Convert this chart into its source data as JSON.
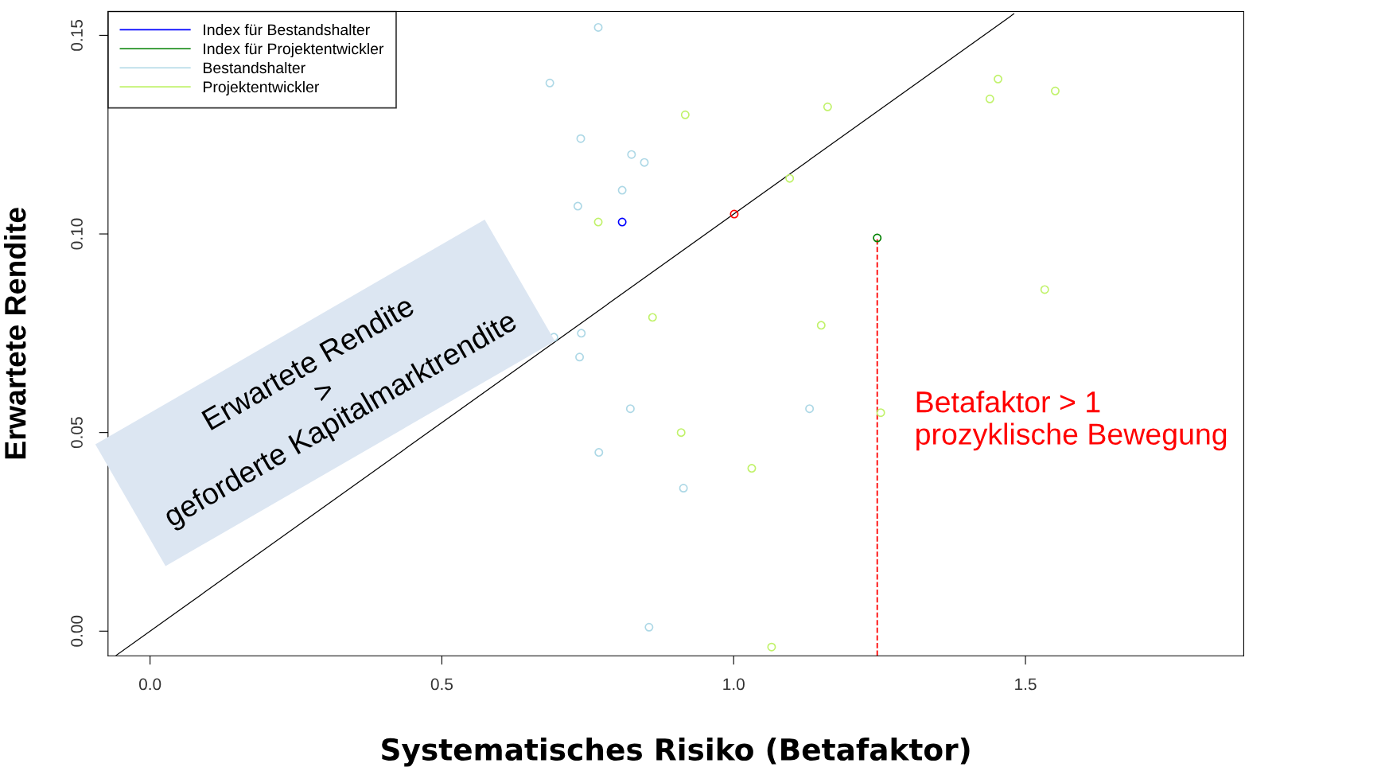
{
  "chart_data": {
    "type": "scatter",
    "xlabel": "Systematisches Risiko (Betafaktor)",
    "ylabel": "Erwartete Rendite",
    "xlim": [
      -0.072,
      1.874
    ],
    "ylim": [
      -0.0062,
      0.156
    ],
    "xticks": [
      {
        "value": 0,
        "label": "0.0"
      },
      {
        "value": 0.5,
        "label": "0.5"
      },
      {
        "value": 1,
        "label": "1.0"
      },
      {
        "value": 1.5,
        "label": "1.5"
      }
    ],
    "yticks": [
      {
        "value": 0,
        "label": "0.00"
      },
      {
        "value": 0.05,
        "label": "0.05"
      },
      {
        "value": 0.1,
        "label": "0.10"
      },
      {
        "value": 0.15,
        "label": "0.15"
      }
    ],
    "grid": false,
    "legend": "top left",
    "marker": "circle",
    "series": [
      {
        "color": "#ff0000",
        "x": [
          1.001
        ],
        "values": [
          0.105
        ]
      },
      {
        "name": "Index für Bestandshalter",
        "color": "#0000ff",
        "x": [
          0.809
        ],
        "values": [
          0.103
        ]
      },
      {
        "name": "Index für Projektentwickler",
        "color": "#008000",
        "x": [
          1.246
        ],
        "values": [
          0.099
        ]
      },
      {
        "name": "Bestandshalter",
        "color": "#add8e6",
        "x": [
          0.768,
          0.685,
          0.738,
          0.825,
          0.847,
          0.809,
          0.733,
          0.692,
          0.739,
          0.736,
          0.823,
          0.769,
          0.914,
          0.855,
          1.13
        ],
        "values": [
          0.152,
          0.138,
          0.124,
          0.12,
          0.118,
          0.111,
          0.107,
          0.074,
          0.075,
          0.069,
          0.056,
          0.045,
          0.036,
          0.001,
          0.056
        ]
      },
      {
        "name": "Projektentwickler",
        "color": "#c1f26b",
        "x": [
          0.768,
          0.917,
          1.161,
          1.096,
          1.439,
          1.453,
          1.551,
          1.533,
          0.861,
          1.15,
          0.91,
          1.031,
          1.252,
          1.065
        ],
        "values": [
          0.103,
          0.13,
          0.132,
          0.114,
          0.134,
          0.139,
          0.136,
          0.086,
          0.079,
          0.077,
          0.05,
          0.041,
          0.055,
          -0.004
        ]
      },
      {
        "type": "line",
        "color": "#000000",
        "marker": "none",
        "line_style": "solid",
        "x": [
          -0.058,
          1.48
        ],
        "values": [
          -0.0061,
          0.1554
        ]
      },
      {
        "type": "line",
        "color": "#ff0000",
        "marker": "none",
        "line_style": "dashed",
        "x": [
          1.246,
          1.246
        ],
        "values": [
          -0.0062,
          0.099
        ]
      }
    ],
    "annotations": [
      "Erwartete Rendite\n>\ngeforderte Kapitalmarktrendite",
      "Betafaktor > 1\nprozyklische Bewegung"
    ]
  }
}
